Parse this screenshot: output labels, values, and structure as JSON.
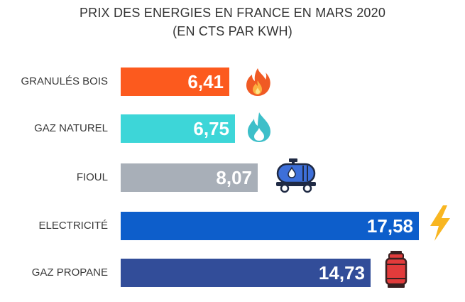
{
  "chart_data": {
    "type": "bar",
    "orientation": "horizontal",
    "title": "PRIX DES ENERGIES EN FRANCE EN MARS 2020",
    "subtitle": "(EN CTS PAR KWH)",
    "xlabel": "",
    "ylabel": "",
    "categories": [
      "GRANULÉS BOIS",
      "GAZ NATUREL",
      "FIOUL",
      "ELECTRICITÉ",
      "GAZ PROPANE"
    ],
    "values": [
      6.41,
      6.75,
      8.07,
      17.58,
      14.73
    ],
    "value_labels": [
      "6,41",
      "6,75",
      "8,07",
      "17,58",
      "14,73"
    ],
    "colors": [
      "#fc5a1e",
      "#3dd6d8",
      "#a8afb8",
      "#0d5ecb",
      "#324d99"
    ],
    "icons": [
      "fire-icon",
      "gas-flame-icon",
      "fuel-tank-truck-icon",
      "lightning-icon",
      "propane-bottle-icon"
    ],
    "xlim": [
      0,
      17.58
    ],
    "grid": false,
    "legend": "none"
  }
}
